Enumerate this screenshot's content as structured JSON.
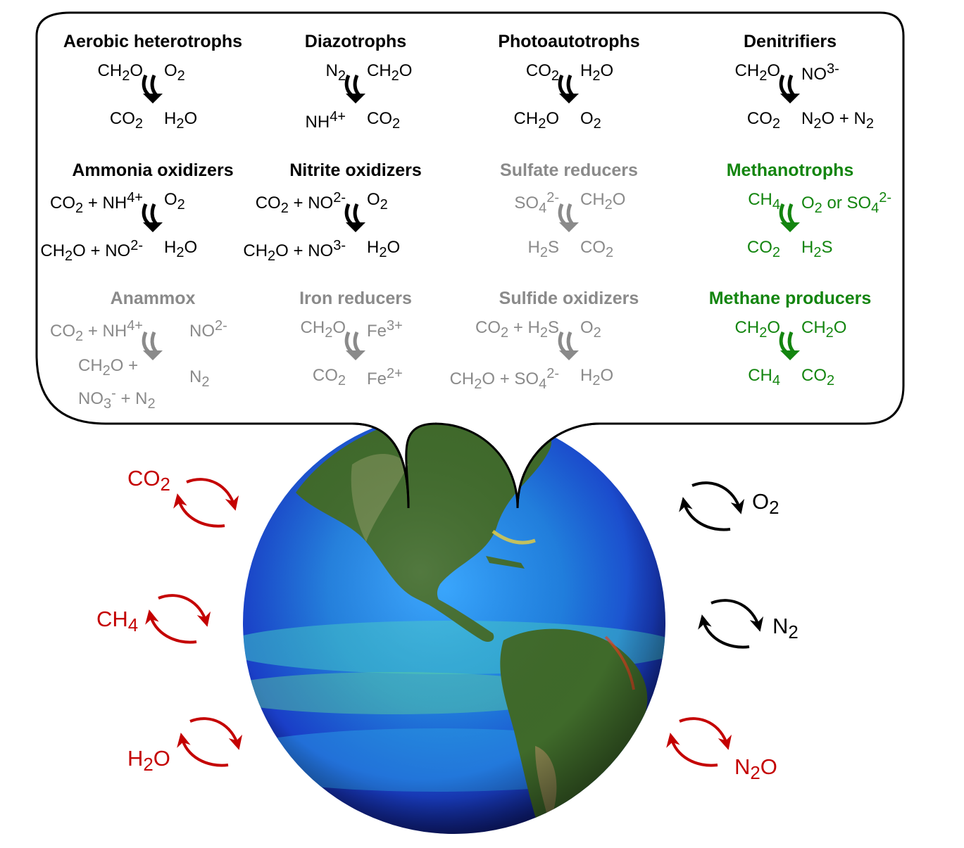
{
  "colors": {
    "active": "#000000",
    "inactive": "#8a8a8a",
    "methane": "#13850f",
    "greenhouse": "#c40000",
    "ocean_deep": "#1a1fb0",
    "ocean_mid": "#1f7fe0",
    "land": "#3f6a2a"
  },
  "metabolisms": [
    {
      "name": "Aerobic heterotrophs",
      "inputs": [
        "CH2O",
        "O2"
      ],
      "outputs": [
        "CO2",
        "H2O"
      ],
      "status": "active"
    },
    {
      "name": "Diazotrophs",
      "inputs": [
        "N2",
        "CH2O"
      ],
      "outputs": [
        "NH4+",
        "CO2"
      ],
      "status": "active"
    },
    {
      "name": "Photoautotrophs",
      "inputs": [
        "CO2",
        "H2O"
      ],
      "outputs": [
        "CH2O",
        "O2"
      ],
      "status": "active"
    },
    {
      "name": "Denitrifiers",
      "inputs": [
        "CH2O",
        "NO3-"
      ],
      "outputs": [
        "CO2",
        "N2O + N2"
      ],
      "status": "active"
    },
    {
      "name": "Ammonia oxidizers",
      "inputs": [
        "CO2 + NH4+",
        "O2"
      ],
      "outputs": [
        "CH2O + NO2-",
        "H2O"
      ],
      "status": "active"
    },
    {
      "name": "Nitrite oxidizers",
      "inputs": [
        "CO2 + NO2-",
        "O2"
      ],
      "outputs": [
        "CH2O + NO3-",
        "H2O"
      ],
      "status": "active"
    },
    {
      "name": "Sulfate reducers",
      "inputs": [
        "SO42-",
        "CH2O"
      ],
      "outputs": [
        "H2S",
        "CO2"
      ],
      "status": "inactive"
    },
    {
      "name": "Methanotrophs",
      "inputs": [
        "CH4",
        "O2 or SO42-"
      ],
      "outputs": [
        "CO2",
        "H2S"
      ],
      "status": "methane"
    },
    {
      "name": "Anammox",
      "inputs": [
        "CO2 + NH4+",
        "NO2-"
      ],
      "outputs": [
        "CH2O + NO3- + N2",
        "N2"
      ],
      "status": "inactive"
    },
    {
      "name": "Iron reducers",
      "inputs": [
        "CH2O",
        "Fe3+"
      ],
      "outputs": [
        "CO2",
        "Fe2+"
      ],
      "status": "inactive"
    },
    {
      "name": "Sulfide oxidizers",
      "inputs": [
        "CO2 + H2S",
        "O2"
      ],
      "outputs": [
        "CH2O + SO42-",
        "H2O"
      ],
      "status": "inactive"
    },
    {
      "name": "Methane producers",
      "inputs": [
        "CH2O",
        "CH2O"
      ],
      "outputs": [
        "CH4",
        "CO2"
      ],
      "status": "methane"
    }
  ],
  "fluxes": [
    {
      "gas": "CO2",
      "side": "left",
      "greenhouse": true
    },
    {
      "gas": "CH4",
      "side": "left",
      "greenhouse": true
    },
    {
      "gas": "H2O",
      "side": "left",
      "greenhouse": true
    },
    {
      "gas": "O2",
      "side": "right",
      "greenhouse": false
    },
    {
      "gas": "N2",
      "side": "right",
      "greenhouse": false
    },
    {
      "gas": "N2O",
      "side": "right",
      "greenhouse": true
    }
  ]
}
